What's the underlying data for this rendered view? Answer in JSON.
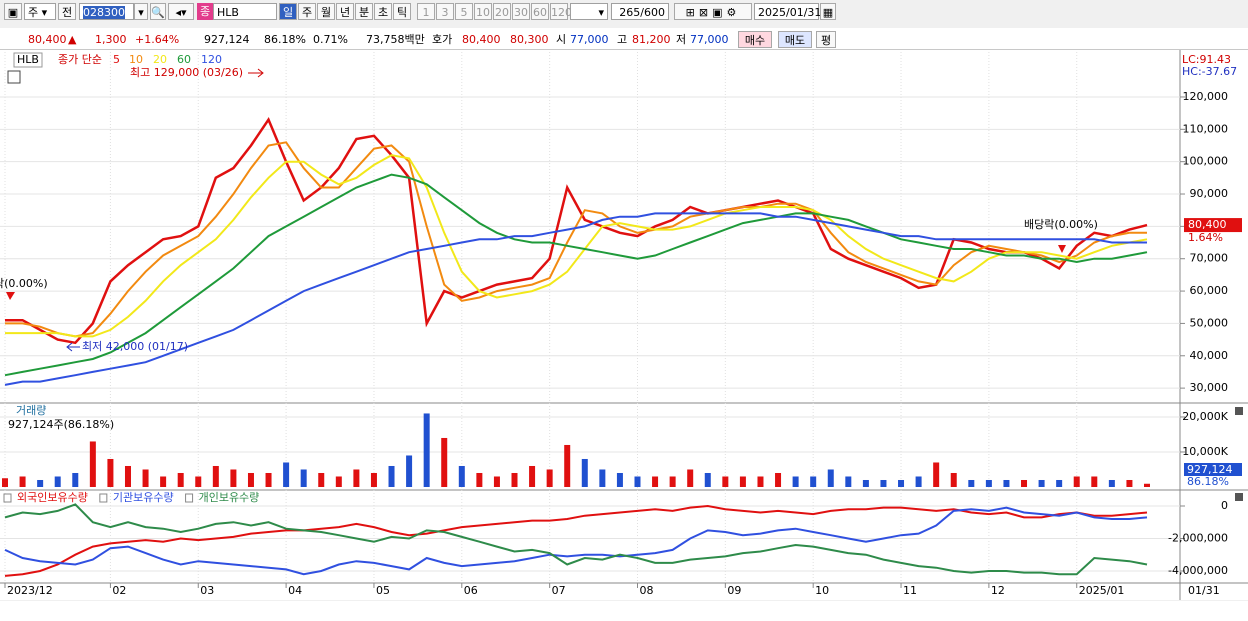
{
  "toolbar": {
    "market": "주",
    "prefix": "전",
    "code": "028300",
    "name_mark": "종",
    "name": "HLB",
    "periods": [
      "일",
      "주",
      "월",
      "년",
      "분",
      "초",
      "틱"
    ],
    "intervals": [
      "1",
      "3",
      "5",
      "10",
      "20",
      "30",
      "60",
      "120"
    ],
    "count": "265",
    "count_max": "/600",
    "date": "2025/01/31"
  },
  "quote_bar": {
    "price": "80,400",
    "arrow": "▲",
    "change": "1,300",
    "change_pct": "+1.64%",
    "volume": "927,124",
    "volume_ratio": "86.18%",
    "turnover": "0.71%",
    "amount": "73,758백만",
    "quote_label": "호가",
    "ask": "80,400",
    "bid": "80,300",
    "open_label": "시",
    "open": "77,000",
    "high_label": "고",
    "high": "81,200",
    "low_label": "저",
    "low": "77,000",
    "buy": "매수",
    "sell": "매도",
    "avg": "평"
  },
  "cursor_date": "01/31",
  "chart_data": [
    {
      "type": "line",
      "name": "HLB",
      "legend_title": "종가 단순",
      "lc": "LC:91.43",
      "hc": "HC:-37.67",
      "last_label": "80,400",
      "change_label": "1.64%",
      "annotations": [
        "최고 129,000 (03/26)",
        "최저 42,000 (01/17)",
        "배당락(0.00%)",
        "락(0.00%)"
      ],
      "categories": [
        "2023/12",
        null,
        null,
        null,
        null,
        null,
        "02",
        null,
        null,
        null,
        null,
        "03",
        null,
        null,
        null,
        null,
        "04",
        null,
        null,
        null,
        null,
        "05",
        null,
        null,
        null,
        null,
        "06",
        null,
        null,
        null,
        null,
        "07",
        null,
        null,
        null,
        null,
        "08",
        null,
        null,
        null,
        null,
        "09",
        null,
        null,
        null,
        null,
        "10",
        null,
        null,
        null,
        null,
        "11",
        null,
        null,
        null,
        null,
        "12",
        null,
        null,
        null,
        null,
        "2025/01",
        null,
        null,
        null,
        null
      ],
      "ylim": [
        25400,
        133900
      ],
      "yticks": [
        {
          "value": 30000,
          "label": "30,000"
        },
        {
          "value": 40000,
          "label": "40,000"
        },
        {
          "value": 50000,
          "label": "50,000"
        },
        {
          "value": 60000,
          "label": "60,000"
        },
        {
          "value": 70000,
          "label": "70,000"
        },
        {
          "value": 80000,
          "label": "80,000"
        },
        {
          "value": 90000,
          "label": "90,000"
        },
        {
          "value": 100000,
          "label": "100,000"
        },
        {
          "value": 110000,
          "label": "110,000"
        },
        {
          "value": 120000,
          "label": "120,000"
        }
      ],
      "grid": true,
      "series": [
        {
          "name": "5",
          "color": "#e01010",
          "values": [
            51000,
            51000,
            48000,
            45000,
            44000,
            50000,
            63000,
            68000,
            72000,
            76000,
            77000,
            80000,
            95000,
            98000,
            105000,
            113000,
            100000,
            88000,
            92000,
            98000,
            107000,
            108000,
            102000,
            95000,
            50000,
            60000,
            58000,
            60000,
            62000,
            63000,
            64000,
            70000,
            92000,
            82000,
            80000,
            78000,
            77000,
            80000,
            82000,
            86000,
            84000,
            85000,
            86000,
            87000,
            88000,
            86000,
            84000,
            73000,
            70000,
            68000,
            66000,
            64000,
            61000,
            62000,
            76000,
            75000,
            73000,
            72000,
            72000,
            70000,
            67000,
            74000,
            78000,
            77000,
            79000,
            80400
          ]
        },
        {
          "name": "10",
          "color": "#f28a10",
          "values": [
            50000,
            50000,
            49000,
            47000,
            46000,
            47000,
            53000,
            60000,
            66000,
            71000,
            74000,
            77000,
            83000,
            90000,
            98000,
            105000,
            106000,
            98000,
            92000,
            92000,
            98000,
            104000,
            105000,
            100000,
            80000,
            62000,
            57000,
            58000,
            60000,
            61000,
            62000,
            64000,
            75000,
            85000,
            84000,
            80000,
            78000,
            79000,
            80000,
            83000,
            84000,
            85000,
            86000,
            86000,
            87000,
            87000,
            85000,
            78000,
            72000,
            69000,
            67000,
            65000,
            63000,
            62000,
            68000,
            72000,
            74000,
            73000,
            72000,
            71000,
            69000,
            71000,
            75000,
            77000,
            78000,
            78000
          ]
        },
        {
          "name": "20",
          "color": "#f2e81a",
          "values": [
            47000,
            47000,
            47000,
            47000,
            46000,
            46000,
            48000,
            52000,
            57000,
            63000,
            68000,
            72000,
            76000,
            82000,
            89000,
            95000,
            100000,
            100000,
            96000,
            93000,
            95000,
            99000,
            102000,
            101000,
            92000,
            78000,
            66000,
            60000,
            58000,
            59000,
            60000,
            62000,
            66000,
            73000,
            80000,
            81000,
            80000,
            79000,
            79000,
            80000,
            82000,
            84000,
            85000,
            86000,
            86000,
            86000,
            85000,
            82000,
            77000,
            73000,
            70000,
            68000,
            66000,
            64000,
            63000,
            66000,
            70000,
            72000,
            72000,
            72000,
            71000,
            70000,
            72000,
            74000,
            75000,
            76000
          ]
        },
        {
          "name": "60",
          "color": "#1f9a3a",
          "values": [
            34000,
            35000,
            36000,
            37000,
            38000,
            39000,
            41000,
            44000,
            47000,
            51000,
            55000,
            59000,
            63000,
            67000,
            72000,
            77000,
            80000,
            83000,
            86000,
            89000,
            92000,
            94000,
            96000,
            95000,
            93000,
            89000,
            85000,
            81000,
            78000,
            76000,
            75000,
            75000,
            74000,
            73000,
            72000,
            71000,
            70000,
            71000,
            73000,
            75000,
            77000,
            79000,
            81000,
            82000,
            83000,
            84000,
            84000,
            83000,
            82000,
            80000,
            78000,
            76000,
            75000,
            74000,
            73000,
            73000,
            72000,
            71000,
            71000,
            70000,
            70000,
            69000,
            70000,
            70000,
            71000,
            72000
          ]
        },
        {
          "name": "120",
          "color": "#3050e0",
          "values": [
            31000,
            32000,
            32000,
            33000,
            34000,
            35000,
            36000,
            37000,
            38000,
            40000,
            42000,
            44000,
            46000,
            48000,
            51000,
            54000,
            57000,
            60000,
            62000,
            64000,
            66000,
            68000,
            70000,
            72000,
            73000,
            74000,
            75000,
            76000,
            76000,
            77000,
            77000,
            78000,
            79000,
            80000,
            82000,
            83000,
            83000,
            84000,
            84000,
            84000,
            84000,
            84000,
            84000,
            84000,
            83000,
            83000,
            82000,
            81000,
            80000,
            79000,
            78000,
            77000,
            77000,
            76000,
            76000,
            76000,
            76000,
            76000,
            76000,
            76000,
            76000,
            76000,
            76000,
            75000,
            75000,
            75000
          ]
        }
      ]
    },
    {
      "type": "bar",
      "title": "거래량",
      "subtitle": "927,124주(86.18%)",
      "last_label": "927,124",
      "ratio_label": "86.18%",
      "up_color": "#e01010",
      "down_color": "#2050d0",
      "ylim": [
        0,
        23700000
      ],
      "yticks": [
        {
          "value": 10000000,
          "label": "10,000K"
        },
        {
          "value": 20000000,
          "label": "20,000K"
        }
      ],
      "values": [
        2500000,
        3000000,
        2000000,
        3000000,
        4000000,
        13000000,
        8000000,
        6000000,
        5000000,
        3000000,
        4000000,
        3000000,
        6000000,
        5000000,
        4000000,
        4000000,
        7000000,
        5000000,
        4000000,
        3000000,
        5000000,
        4000000,
        6000000,
        9000000,
        21000000,
        14000000,
        6000000,
        4000000,
        3000000,
        4000000,
        6000000,
        5000000,
        12000000,
        8000000,
        5000000,
        4000000,
        3000000,
        3000000,
        3000000,
        5000000,
        4000000,
        3000000,
        3000000,
        3000000,
        4000000,
        3000000,
        3000000,
        5000000,
        3000000,
        2000000,
        2000000,
        2000000,
        3000000,
        7000000,
        4000000,
        2000000,
        2000000,
        2000000,
        2000000,
        2000000,
        2000000,
        3000000,
        3000000,
        2000000,
        2000000,
        927124
      ]
    },
    {
      "type": "line",
      "ylim": [
        -4677000,
        923000
      ],
      "yticks": [
        {
          "value": -4000000,
          "label": "-4,000,000"
        },
        {
          "value": -2000000,
          "label": "-2,000,000"
        },
        0
      ],
      "series": [
        {
          "name": "외국인보유수량",
          "color": "#e01010",
          "values": [
            -4300000,
            -4200000,
            -4000000,
            -3600000,
            -3000000,
            -2500000,
            -2300000,
            -2200000,
            -2100000,
            -2200000,
            -2000000,
            -2100000,
            -2000000,
            -1900000,
            -1700000,
            -1600000,
            -1500000,
            -1500000,
            -1400000,
            -1300000,
            -1100000,
            -1300000,
            -1600000,
            -1800000,
            -1700000,
            -1500000,
            -1300000,
            -1200000,
            -1100000,
            -1000000,
            -900000,
            -900000,
            -800000,
            -600000,
            -500000,
            -400000,
            -300000,
            -200000,
            -300000,
            -100000,
            0,
            -200000,
            -300000,
            -400000,
            -300000,
            -400000,
            -500000,
            -300000,
            -200000,
            -200000,
            -100000,
            -100000,
            -200000,
            -300000,
            -200000,
            -400000,
            -500000,
            -400000,
            -700000,
            -700000,
            -500000,
            -400000,
            -600000,
            -600000,
            -500000,
            -400000
          ]
        },
        {
          "name": "기관보유수량",
          "color": "#3050e0",
          "values": [
            -2700000,
            -3200000,
            -3400000,
            -3500000,
            -3600000,
            -3300000,
            -2600000,
            -2500000,
            -2900000,
            -3300000,
            -3600000,
            -3400000,
            -3500000,
            -3600000,
            -3700000,
            -3800000,
            -3900000,
            -4200000,
            -4000000,
            -3600000,
            -3400000,
            -3500000,
            -3700000,
            -3900000,
            -3200000,
            -3500000,
            -3700000,
            -3600000,
            -3500000,
            -3400000,
            -3200000,
            -3000000,
            -3100000,
            -3000000,
            -3000000,
            -3100000,
            -3000000,
            -2900000,
            -2700000,
            -2000000,
            -1500000,
            -1600000,
            -1800000,
            -1700000,
            -1500000,
            -1400000,
            -1600000,
            -1800000,
            -2000000,
            -2200000,
            -2000000,
            -1800000,
            -1700000,
            -1200000,
            -300000,
            -200000,
            -300000,
            -100000,
            -400000,
            -500000,
            -600000,
            -400000,
            -700000,
            -800000,
            -800000,
            -700000
          ]
        },
        {
          "name": "개인보유수량",
          "color": "#2e8b4a",
          "values": [
            -700000,
            -400000,
            -500000,
            -300000,
            100000,
            -1000000,
            -1300000,
            -1000000,
            -1300000,
            -1400000,
            -1600000,
            -1400000,
            -1100000,
            -1000000,
            -1200000,
            -1000000,
            -1400000,
            -1500000,
            -1600000,
            -1800000,
            -2000000,
            -2200000,
            -1900000,
            -2000000,
            -1500000,
            -1600000,
            -1900000,
            -2200000,
            -2500000,
            -2800000,
            -2700000,
            -2900000,
            -3600000,
            -3200000,
            -3300000,
            -3000000,
            -3200000,
            -3500000,
            -3500000,
            -3300000,
            -3200000,
            -3100000,
            -2900000,
            -2800000,
            -2600000,
            -2400000,
            -2500000,
            -2700000,
            -2900000,
            -3000000,
            -3300000,
            -3500000,
            -3700000,
            -3800000,
            -4000000,
            -4100000,
            -4000000,
            -4000000,
            -4100000,
            -4100000,
            -4200000,
            -4200000,
            -3200000,
            -3300000,
            -3400000,
            -3600000
          ]
        }
      ]
    }
  ]
}
